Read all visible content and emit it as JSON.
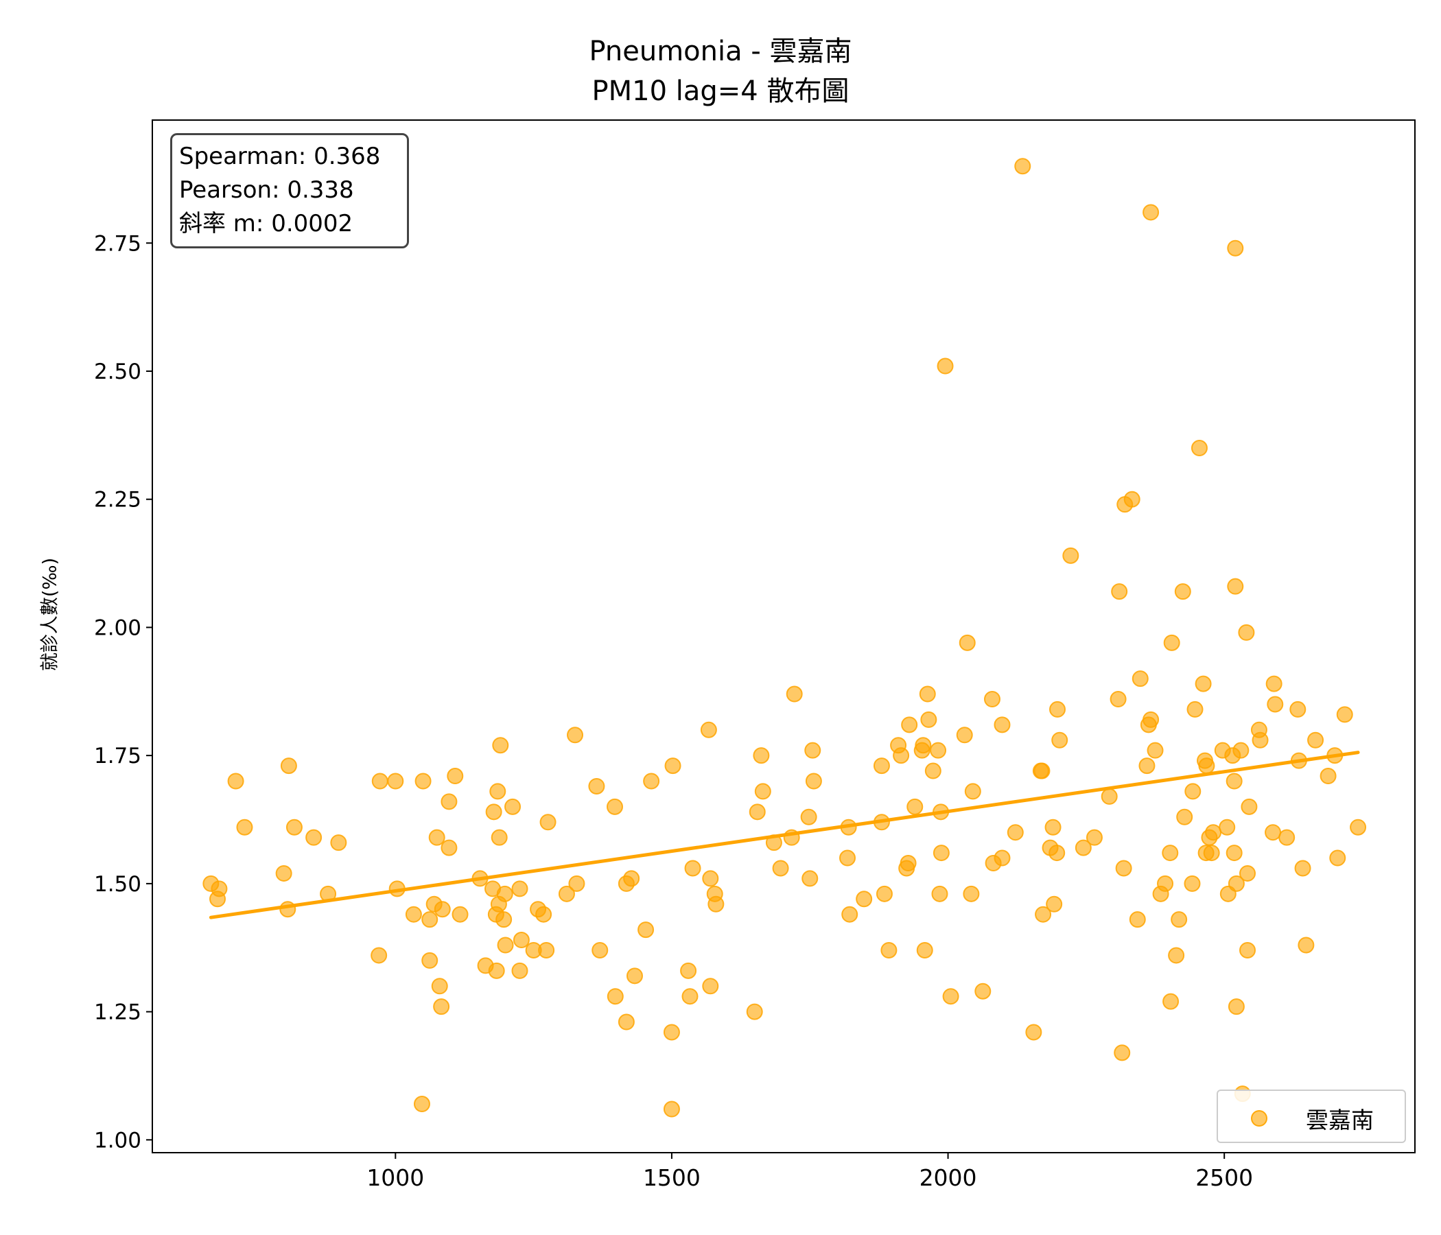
{
  "chart_data": {
    "type": "scatter",
    "title": "Pneumonia - 雲嘉南",
    "subtitle": "PM10 lag=4 散布圖",
    "xlabel": "",
    "ylabel": "就診人數(‰)",
    "xlim": [
      560,
      2845
    ],
    "ylim": [
      0.975,
      2.99
    ],
    "xticks": [
      1000,
      1500,
      2000,
      2500
    ],
    "yticks": [
      1.0,
      1.25,
      1.5,
      1.75,
      2.0,
      2.25,
      2.5,
      2.75
    ],
    "xtick_labels": [
      "1000",
      "1500",
      "2000",
      "2500"
    ],
    "ytick_labels": [
      "1.00",
      "1.25",
      "1.50",
      "1.75",
      "2.00",
      "2.25",
      "2.50",
      "2.75"
    ],
    "grid": false,
    "legend_position": "bottom-right",
    "stats": [
      "Spearman: 0.368",
      "Pearson: 0.338",
      "斜率 m: 0.0002"
    ],
    "series": [
      {
        "name": "雲嘉南",
        "color": "#FFA500",
        "points": [
          [
            666,
            1.5
          ],
          [
            678,
            1.47
          ],
          [
            681,
            1.49
          ],
          [
            711,
            1.7
          ],
          [
            727,
            1.61
          ],
          [
            798,
            1.52
          ],
          [
            805,
            1.45
          ],
          [
            807,
            1.73
          ],
          [
            817,
            1.61
          ],
          [
            852,
            1.59
          ],
          [
            878,
            1.48
          ],
          [
            897,
            1.58
          ],
          [
            970,
            1.36
          ],
          [
            972,
            1.7
          ],
          [
            1000,
            1.7
          ],
          [
            1003,
            1.49
          ],
          [
            1033,
            1.44
          ],
          [
            1048,
            1.07
          ],
          [
            1050,
            1.7
          ],
          [
            1062,
            1.35
          ],
          [
            1062,
            1.43
          ],
          [
            1070,
            1.46
          ],
          [
            1075,
            1.59
          ],
          [
            1080,
            1.3
          ],
          [
            1083,
            1.26
          ],
          [
            1085,
            1.45
          ],
          [
            1097,
            1.57
          ],
          [
            1097,
            1.66
          ],
          [
            1108,
            1.71
          ],
          [
            1117,
            1.44
          ],
          [
            1153,
            1.51
          ],
          [
            1163,
            1.34
          ],
          [
            1176,
            1.49
          ],
          [
            1178,
            1.64
          ],
          [
            1182,
            1.44
          ],
          [
            1183,
            1.33
          ],
          [
            1185,
            1.68
          ],
          [
            1187,
            1.46
          ],
          [
            1188,
            1.59
          ],
          [
            1190,
            1.77
          ],
          [
            1196,
            1.43
          ],
          [
            1198,
            1.48
          ],
          [
            1199,
            1.38
          ],
          [
            1212,
            1.65
          ],
          [
            1225,
            1.49
          ],
          [
            1225,
            1.33
          ],
          [
            1228,
            1.39
          ],
          [
            1250,
            1.37
          ],
          [
            1258,
            1.45
          ],
          [
            1268,
            1.44
          ],
          [
            1273,
            1.37
          ],
          [
            1276,
            1.62
          ],
          [
            1310,
            1.48
          ],
          [
            1325,
            1.79
          ],
          [
            1328,
            1.5
          ],
          [
            1364,
            1.69
          ],
          [
            1370,
            1.37
          ],
          [
            1397,
            1.65
          ],
          [
            1398,
            1.28
          ],
          [
            1418,
            1.23
          ],
          [
            1418,
            1.5
          ],
          [
            1427,
            1.51
          ],
          [
            1433,
            1.32
          ],
          [
            1453,
            1.41
          ],
          [
            1463,
            1.7
          ],
          [
            1500,
            1.21
          ],
          [
            1500,
            1.06
          ],
          [
            1502,
            1.73
          ],
          [
            1530,
            1.33
          ],
          [
            1533,
            1.28
          ],
          [
            1538,
            1.53
          ],
          [
            1567,
            1.8
          ],
          [
            1570,
            1.51
          ],
          [
            1570,
            1.3
          ],
          [
            1578,
            1.48
          ],
          [
            1580,
            1.46
          ],
          [
            1650,
            1.25
          ],
          [
            1655,
            1.64
          ],
          [
            1662,
            1.75
          ],
          [
            1665,
            1.68
          ],
          [
            1685,
            1.58
          ],
          [
            1697,
            1.53
          ],
          [
            1717,
            1.59
          ],
          [
            1722,
            1.87
          ],
          [
            1748,
            1.63
          ],
          [
            1750,
            1.51
          ],
          [
            1755,
            1.76
          ],
          [
            1757,
            1.7
          ],
          [
            1818,
            1.55
          ],
          [
            1820,
            1.61
          ],
          [
            1822,
            1.44
          ],
          [
            1848,
            1.47
          ],
          [
            1880,
            1.73
          ],
          [
            1880,
            1.62
          ],
          [
            1885,
            1.48
          ],
          [
            1893,
            1.37
          ],
          [
            1910,
            1.77
          ],
          [
            1915,
            1.75
          ],
          [
            1925,
            1.53
          ],
          [
            1928,
            1.54
          ],
          [
            1930,
            1.81
          ],
          [
            1940,
            1.65
          ],
          [
            1953,
            1.76
          ],
          [
            1955,
            1.77
          ],
          [
            1958,
            1.37
          ],
          [
            1963,
            1.87
          ],
          [
            1965,
            1.82
          ],
          [
            1973,
            1.72
          ],
          [
            1982,
            1.76
          ],
          [
            1985,
            1.48
          ],
          [
            1987,
            1.64
          ],
          [
            1988,
            1.56
          ],
          [
            1995,
            2.51
          ],
          [
            2005,
            1.28
          ],
          [
            2030,
            1.79
          ],
          [
            2035,
            1.97
          ],
          [
            2042,
            1.48
          ],
          [
            2045,
            1.68
          ],
          [
            2063,
            1.29
          ],
          [
            2080,
            1.86
          ],
          [
            2082,
            1.54
          ],
          [
            2098,
            1.81
          ],
          [
            2098,
            1.55
          ],
          [
            2122,
            1.6
          ],
          [
            2135,
            2.9
          ],
          [
            2155,
            1.21
          ],
          [
            2168,
            1.72
          ],
          [
            2170,
            1.72
          ],
          [
            2172,
            1.44
          ],
          [
            2185,
            1.57
          ],
          [
            2190,
            1.61
          ],
          [
            2192,
            1.46
          ],
          [
            2197,
            1.56
          ],
          [
            2198,
            1.84
          ],
          [
            2202,
            1.78
          ],
          [
            2222,
            2.14
          ],
          [
            2245,
            1.57
          ],
          [
            2265,
            1.59
          ],
          [
            2292,
            1.67
          ],
          [
            2308,
            1.86
          ],
          [
            2310,
            2.07
          ],
          [
            2315,
            1.17
          ],
          [
            2318,
            1.53
          ],
          [
            2320,
            2.24
          ],
          [
            2333,
            2.25
          ],
          [
            2343,
            1.43
          ],
          [
            2348,
            1.9
          ],
          [
            2360,
            1.73
          ],
          [
            2363,
            1.81
          ],
          [
            2367,
            2.81
          ],
          [
            2367,
            1.82
          ],
          [
            2375,
            1.76
          ],
          [
            2385,
            1.48
          ],
          [
            2393,
            1.5
          ],
          [
            2402,
            1.56
          ],
          [
            2403,
            1.27
          ],
          [
            2405,
            1.97
          ],
          [
            2413,
            1.36
          ],
          [
            2418,
            1.43
          ],
          [
            2425,
            2.07
          ],
          [
            2428,
            1.63
          ],
          [
            2442,
            1.5
          ],
          [
            2443,
            1.68
          ],
          [
            2447,
            1.84
          ],
          [
            2455,
            2.35
          ],
          [
            2462,
            1.89
          ],
          [
            2465,
            1.74
          ],
          [
            2467,
            1.56
          ],
          [
            2468,
            1.73
          ],
          [
            2473,
            1.59
          ],
          [
            2477,
            1.56
          ],
          [
            2480,
            1.6
          ],
          [
            2497,
            1.76
          ],
          [
            2505,
            1.61
          ],
          [
            2507,
            1.48
          ],
          [
            2515,
            1.75
          ],
          [
            2518,
            1.7
          ],
          [
            2518,
            1.56
          ],
          [
            2520,
            2.74
          ],
          [
            2520,
            2.08
          ],
          [
            2522,
            1.5
          ],
          [
            2522,
            1.26
          ],
          [
            2530,
            1.76
          ],
          [
            2533,
            1.09
          ],
          [
            2540,
            1.99
          ],
          [
            2542,
            1.37
          ],
          [
            2542,
            1.52
          ],
          [
            2545,
            1.65
          ],
          [
            2563,
            1.8
          ],
          [
            2565,
            1.78
          ],
          [
            2588,
            1.6
          ],
          [
            2590,
            1.89
          ],
          [
            2592,
            1.85
          ],
          [
            2613,
            1.59
          ],
          [
            2633,
            1.84
          ],
          [
            2635,
            1.74
          ],
          [
            2642,
            1.53
          ],
          [
            2648,
            1.38
          ],
          [
            2665,
            1.78
          ],
          [
            2688,
            1.71
          ],
          [
            2700,
            1.75
          ],
          [
            2705,
            1.55
          ],
          [
            2718,
            1.83
          ],
          [
            2742,
            1.61
          ]
        ]
      }
    ],
    "trendline": {
      "color": "#FFA500",
      "x": [
        666,
        2742
      ],
      "y": [
        1.434,
        1.756
      ]
    }
  }
}
